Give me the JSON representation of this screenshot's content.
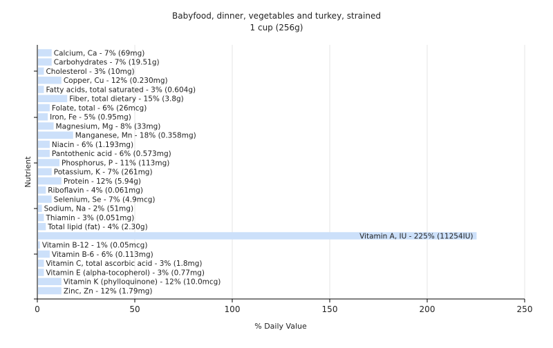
{
  "chart_data": {
    "type": "bar",
    "orientation": "horizontal",
    "title": "Babyfood, dinner, vegetables and turkey, strained",
    "subtitle": "1 cup (256g)",
    "xlabel": "% Daily Value",
    "ylabel": "Nutrient",
    "xlim": [
      0,
      250
    ],
    "xticks": [
      0,
      50,
      100,
      150,
      200,
      250
    ],
    "grid": true,
    "colors": {
      "bar": "#cce0fa",
      "grid": "#e6e6e6",
      "axis": "#000000",
      "text": "#222222"
    },
    "bars": [
      {
        "label": "Calcium, Ca - 7% (69mg)",
        "value": 7
      },
      {
        "label": "Carbohydrates - 7% (19.51g)",
        "value": 7
      },
      {
        "label": "Cholesterol - 3% (10mg)",
        "value": 3
      },
      {
        "label": "Copper, Cu - 12% (0.230mg)",
        "value": 12
      },
      {
        "label": "Fatty acids, total saturated - 3% (0.604g)",
        "value": 3
      },
      {
        "label": "Fiber, total dietary - 15% (3.8g)",
        "value": 15
      },
      {
        "label": "Folate, total - 6% (26mcg)",
        "value": 6
      },
      {
        "label": "Iron, Fe - 5% (0.95mg)",
        "value": 5
      },
      {
        "label": "Magnesium, Mg - 8% (33mg)",
        "value": 8
      },
      {
        "label": "Manganese, Mn - 18% (0.358mg)",
        "value": 18
      },
      {
        "label": "Niacin - 6% (1.193mg)",
        "value": 6
      },
      {
        "label": "Pantothenic acid - 6% (0.573mg)",
        "value": 6
      },
      {
        "label": "Phosphorus, P - 11% (113mg)",
        "value": 11
      },
      {
        "label": "Potassium, K - 7% (261mg)",
        "value": 7
      },
      {
        "label": "Protein - 12% (5.94g)",
        "value": 12
      },
      {
        "label": "Riboflavin - 4% (0.061mg)",
        "value": 4
      },
      {
        "label": "Selenium, Se - 7% (4.9mcg)",
        "value": 7
      },
      {
        "label": "Sodium, Na - 2% (51mg)",
        "value": 2
      },
      {
        "label": "Thiamin - 3% (0.051mg)",
        "value": 3
      },
      {
        "label": "Total lipid (fat) - 4% (2.30g)",
        "value": 4
      },
      {
        "label": "Vitamin A, IU - 225% (11254IU)",
        "value": 225
      },
      {
        "label": "Vitamin B-12 - 1% (0.05mcg)",
        "value": 1
      },
      {
        "label": "Vitamin B-6 - 6% (0.113mg)",
        "value": 6
      },
      {
        "label": "Vitamin C, total ascorbic acid - 3% (1.8mg)",
        "value": 3
      },
      {
        "label": "Vitamin E (alpha-tocopherol) - 3% (0.77mg)",
        "value": 3
      },
      {
        "label": "Vitamin K (phylloquinone) - 12% (10.0mcg)",
        "value": 12
      },
      {
        "label": "Zinc, Zn - 12% (1.79mg)",
        "value": 12
      }
    ]
  }
}
